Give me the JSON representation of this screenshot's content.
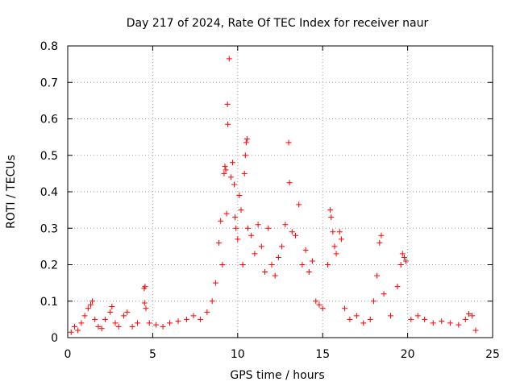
{
  "chart_data": {
    "type": "scatter",
    "title": "Day 217 of 2024, Rate Of TEC Index for receiver naur",
    "xlabel": "GPS time / hours",
    "ylabel": "ROTI / TECUs",
    "xlim": [
      0,
      25
    ],
    "ylim": [
      0,
      0.8
    ],
    "x_ticks": [
      "0",
      "5",
      "10",
      "15",
      "20",
      "25"
    ],
    "y_ticks": [
      "0",
      "0.1",
      "0.2",
      "0.3",
      "0.4",
      "0.5",
      "0.6",
      "0.7",
      "0.8"
    ],
    "grid": true,
    "marker": "+",
    "color": "#ff0000",
    "series": [
      {
        "points": [
          [
            0.2,
            0.015
          ],
          [
            0.4,
            0.03
          ],
          [
            0.6,
            0.02
          ],
          [
            0.8,
            0.04
          ],
          [
            1.0,
            0.06
          ],
          [
            1.2,
            0.08
          ],
          [
            1.35,
            0.09
          ],
          [
            1.45,
            0.1
          ],
          [
            1.6,
            0.05
          ],
          [
            1.8,
            0.03
          ],
          [
            2.0,
            0.025
          ],
          [
            2.2,
            0.05
          ],
          [
            2.5,
            0.07
          ],
          [
            2.6,
            0.085
          ],
          [
            2.8,
            0.04
          ],
          [
            3.0,
            0.03
          ],
          [
            3.3,
            0.06
          ],
          [
            3.5,
            0.07
          ],
          [
            3.8,
            0.03
          ],
          [
            4.1,
            0.04
          ],
          [
            4.5,
            0.135
          ],
          [
            4.55,
            0.14
          ],
          [
            4.52,
            0.095
          ],
          [
            4.6,
            0.08
          ],
          [
            4.8,
            0.04
          ],
          [
            5.2,
            0.035
          ],
          [
            5.6,
            0.03
          ],
          [
            6.0,
            0.04
          ],
          [
            6.5,
            0.045
          ],
          [
            7.0,
            0.05
          ],
          [
            7.4,
            0.06
          ],
          [
            7.8,
            0.05
          ],
          [
            8.2,
            0.07
          ],
          [
            8.5,
            0.1
          ],
          [
            8.7,
            0.15
          ],
          [
            8.9,
            0.26
          ],
          [
            9.0,
            0.32
          ],
          [
            9.1,
            0.2
          ],
          [
            9.2,
            0.45
          ],
          [
            9.25,
            0.47
          ],
          [
            9.3,
            0.46
          ],
          [
            9.35,
            0.34
          ],
          [
            9.4,
            0.64
          ],
          [
            9.42,
            0.585
          ],
          [
            9.5,
            0.765
          ],
          [
            9.6,
            0.44
          ],
          [
            9.7,
            0.48
          ],
          [
            9.8,
            0.42
          ],
          [
            9.85,
            0.33
          ],
          [
            9.9,
            0.3
          ],
          [
            10.0,
            0.27
          ],
          [
            10.1,
            0.39
          ],
          [
            10.2,
            0.35
          ],
          [
            10.3,
            0.2
          ],
          [
            10.4,
            0.45
          ],
          [
            10.45,
            0.5
          ],
          [
            10.5,
            0.535
          ],
          [
            10.55,
            0.545
          ],
          [
            10.6,
            0.3
          ],
          [
            10.8,
            0.28
          ],
          [
            11.0,
            0.23
          ],
          [
            11.2,
            0.31
          ],
          [
            11.4,
            0.25
          ],
          [
            11.6,
            0.18
          ],
          [
            11.8,
            0.3
          ],
          [
            12.0,
            0.2
          ],
          [
            12.2,
            0.17
          ],
          [
            12.4,
            0.22
          ],
          [
            12.6,
            0.25
          ],
          [
            12.8,
            0.31
          ],
          [
            13.0,
            0.535
          ],
          [
            13.05,
            0.425
          ],
          [
            13.2,
            0.29
          ],
          [
            13.4,
            0.28
          ],
          [
            13.6,
            0.365
          ],
          [
            13.8,
            0.2
          ],
          [
            14.0,
            0.24
          ],
          [
            14.2,
            0.18
          ],
          [
            14.4,
            0.21
          ],
          [
            14.6,
            0.1
          ],
          [
            14.8,
            0.09
          ],
          [
            15.0,
            0.08
          ],
          [
            15.3,
            0.2
          ],
          [
            15.45,
            0.35
          ],
          [
            15.5,
            0.33
          ],
          [
            15.6,
            0.29
          ],
          [
            15.7,
            0.25
          ],
          [
            15.8,
            0.23
          ],
          [
            16.0,
            0.29
          ],
          [
            16.1,
            0.27
          ],
          [
            16.3,
            0.08
          ],
          [
            16.6,
            0.05
          ],
          [
            17.0,
            0.06
          ],
          [
            17.4,
            0.04
          ],
          [
            17.8,
            0.05
          ],
          [
            18.0,
            0.1
          ],
          [
            18.2,
            0.17
          ],
          [
            18.35,
            0.26
          ],
          [
            18.45,
            0.28
          ],
          [
            18.6,
            0.12
          ],
          [
            19.0,
            0.06
          ],
          [
            19.4,
            0.14
          ],
          [
            19.6,
            0.2
          ],
          [
            19.7,
            0.23
          ],
          [
            19.8,
            0.22
          ],
          [
            19.9,
            0.21
          ],
          [
            20.2,
            0.05
          ],
          [
            20.6,
            0.06
          ],
          [
            21.0,
            0.05
          ],
          [
            21.5,
            0.04
          ],
          [
            22.0,
            0.045
          ],
          [
            22.5,
            0.04
          ],
          [
            23.0,
            0.035
          ],
          [
            23.4,
            0.05
          ],
          [
            23.6,
            0.065
          ],
          [
            23.8,
            0.06
          ],
          [
            24.0,
            0.02
          ]
        ]
      }
    ]
  }
}
